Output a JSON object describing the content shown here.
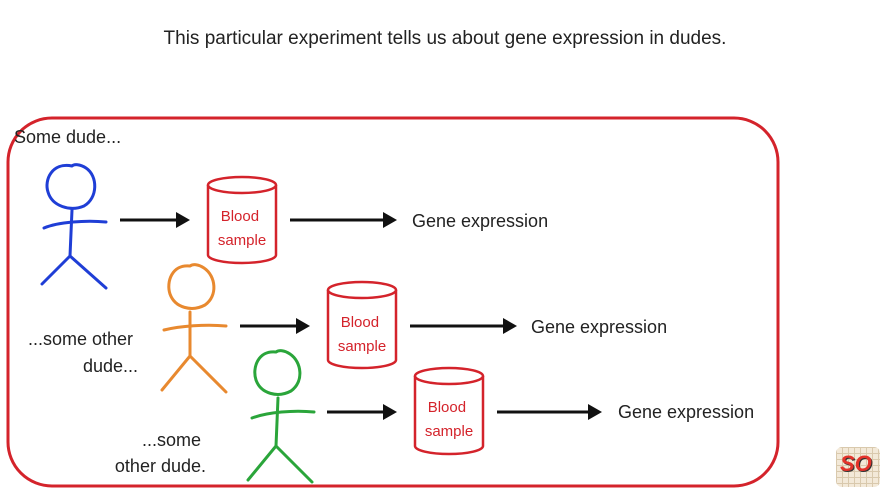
{
  "header": {
    "title": "This particular experiment tells us about gene expression in dudes."
  },
  "colors": {
    "frame": "#d4232b",
    "dude1": "#1f3ed6",
    "dude2": "#e8892f",
    "dude3": "#2aa53a",
    "arrow": "#111111"
  },
  "rows": [
    {
      "label_lines": [
        "Some dude..."
      ],
      "can_lines": [
        "Blood",
        "sample"
      ],
      "result": "Gene expression",
      "figure_icon": "stick-figure-blue"
    },
    {
      "label_lines": [
        "...some other",
        "dude..."
      ],
      "can_lines": [
        "Blood",
        "sample"
      ],
      "result": "Gene expression",
      "figure_icon": "stick-figure-orange"
    },
    {
      "label_lines": [
        "...some",
        "other dude."
      ],
      "can_lines": [
        "Blood",
        "sample"
      ],
      "result": "Gene expression",
      "figure_icon": "stick-figure-green"
    }
  ],
  "logo": {
    "icon": "channel-logo-icon",
    "text": "SO"
  }
}
